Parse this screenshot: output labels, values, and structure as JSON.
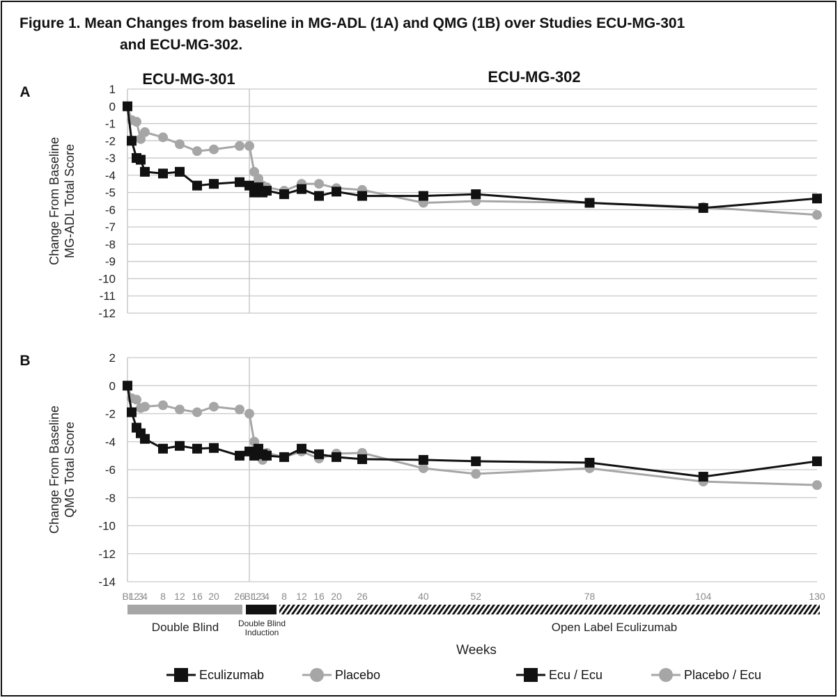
{
  "figure": {
    "title_line1": "Figure 1. Mean Changes from baseline in MG-ADL (1A) and QMG (1B) over Studies ECU-MG-301",
    "title_line2": "and ECU-MG-302.",
    "study_301_label": "ECU-MG-301",
    "study_302_label": "ECU-MG-302",
    "period_labels": {
      "double_blind": "Double Blind",
      "induction_line1": "Double Blind",
      "induction_line2": "Induction",
      "open_label": "Open Label Eculizumab"
    },
    "x_title": "Weeks",
    "legend": [
      "Eculizumab",
      "Placebo",
      "Ecu / Ecu",
      "Placebo / Ecu"
    ],
    "colors": {
      "eculizumab": "#111111",
      "placebo": "#a6a6a6",
      "grid": "#c8c8c8",
      "tick_text": "#8a8a8a"
    }
  },
  "chart_data": [
    {
      "type": "line",
      "panel": "A",
      "ylabel_line1": "Change From Baseline",
      "ylabel_line2": "MG-ADL Total Score",
      "ylim": [
        -12,
        1
      ],
      "yticks": [
        1,
        0,
        -1,
        -2,
        -3,
        -4,
        -5,
        -6,
        -7,
        -8,
        -9,
        -10,
        -11,
        -12
      ],
      "x_tick_labels": [
        "BL",
        "1",
        "2",
        "3",
        "4",
        "8",
        "12",
        "16",
        "20",
        "26",
        "BL",
        "1",
        "2",
        "3",
        "4",
        "8",
        "12",
        "16",
        "20",
        "26",
        "40",
        "52",
        "78",
        "104",
        "130"
      ],
      "series": [
        {
          "name": "Eculizumab",
          "period": "ECU-MG-301",
          "x": [
            0,
            1,
            2,
            3,
            4,
            8,
            12,
            16,
            20,
            26
          ],
          "values": [
            0,
            -2.0,
            -3.0,
            -3.1,
            -3.8,
            -3.9,
            -3.8,
            -4.6,
            -4.5,
            -4.4
          ]
        },
        {
          "name": "Ecu / Ecu",
          "period": "ECU-MG-302",
          "x": [
            0,
            1,
            2,
            3,
            4,
            8,
            12,
            16,
            20,
            26,
            40,
            52,
            78,
            104,
            130
          ],
          "values": [
            -4.6,
            -5.0,
            -4.7,
            -5.0,
            -4.9,
            -5.1,
            -4.8,
            -5.2,
            -4.95,
            -5.2,
            -5.2,
            -5.1,
            -5.6,
            -5.9,
            -5.35
          ]
        },
        {
          "name": "Placebo",
          "period": "ECU-MG-301",
          "x": [
            0,
            1,
            2,
            3,
            4,
            8,
            12,
            16,
            20,
            26
          ],
          "values": [
            0,
            -0.8,
            -0.9,
            -1.9,
            -1.5,
            -1.8,
            -2.2,
            -2.6,
            -2.5,
            -2.3
          ]
        },
        {
          "name": "Placebo / Ecu",
          "period": "ECU-MG-302",
          "x": [
            0,
            1,
            2,
            3,
            4,
            8,
            12,
            16,
            20,
            26,
            40,
            52,
            78,
            104,
            130
          ],
          "values": [
            -2.3,
            -3.8,
            -4.2,
            -4.6,
            -4.7,
            -4.9,
            -4.5,
            -4.5,
            -4.75,
            -4.85,
            -5.6,
            -5.5,
            -5.6,
            -5.85,
            -6.3
          ]
        }
      ]
    },
    {
      "type": "line",
      "panel": "B",
      "ylabel_line1": "Change From Baseline",
      "ylabel_line2": "QMG Total Score",
      "ylim": [
        -14,
        2
      ],
      "yticks": [
        2,
        0,
        -2,
        -4,
        -6,
        -8,
        -10,
        -12,
        -14
      ],
      "x_tick_labels": [
        "BL",
        "1",
        "2",
        "3",
        "4",
        "8",
        "12",
        "16",
        "20",
        "26",
        "BL",
        "1",
        "2",
        "3",
        "4",
        "8",
        "12",
        "16",
        "20",
        "26",
        "40",
        "52",
        "78",
        "104",
        "130"
      ],
      "series": [
        {
          "name": "Eculizumab",
          "period": "ECU-MG-301",
          "x": [
            0,
            1,
            2,
            3,
            4,
            8,
            12,
            16,
            20,
            26
          ],
          "values": [
            0,
            -1.9,
            -3.0,
            -3.4,
            -3.8,
            -4.5,
            -4.3,
            -4.5,
            -4.45,
            -5.0
          ]
        },
        {
          "name": "Ecu / Ecu",
          "period": "ECU-MG-302",
          "x": [
            0,
            1,
            2,
            3,
            4,
            8,
            12,
            16,
            20,
            26,
            40,
            52,
            78,
            104,
            130
          ],
          "values": [
            -4.7,
            -5.0,
            -4.5,
            -4.9,
            -5.0,
            -5.1,
            -4.5,
            -4.9,
            -5.1,
            -5.25,
            -5.3,
            -5.4,
            -5.5,
            -6.5,
            -5.4
          ]
        },
        {
          "name": "Placebo",
          "period": "ECU-MG-301",
          "x": [
            0,
            1,
            2,
            3,
            4,
            8,
            12,
            16,
            20,
            26
          ],
          "values": [
            0,
            -0.9,
            -1.0,
            -1.6,
            -1.5,
            -1.4,
            -1.7,
            -1.9,
            -1.5,
            -1.7
          ]
        },
        {
          "name": "Placebo / Ecu",
          "period": "ECU-MG-302",
          "x": [
            0,
            1,
            2,
            3,
            4,
            8,
            12,
            16,
            20,
            26,
            40,
            52,
            78,
            104,
            130
          ],
          "values": [
            -2.0,
            -4.0,
            -4.7,
            -5.3,
            -4.8,
            -5.1,
            -4.7,
            -5.2,
            -4.85,
            -4.8,
            -5.9,
            -6.3,
            -5.9,
            -6.85,
            -7.1
          ]
        }
      ]
    }
  ]
}
